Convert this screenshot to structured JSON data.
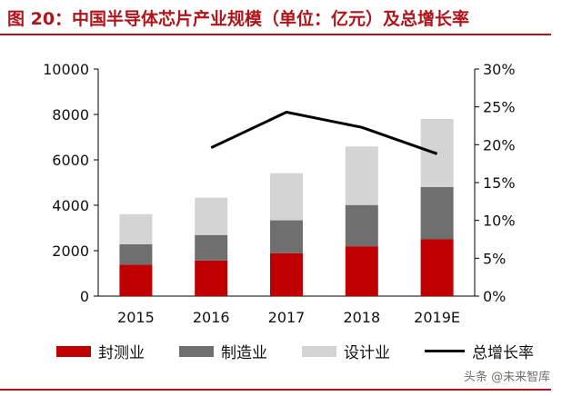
{
  "figure": {
    "title": "图 20：中国半导体芯片产业规模（单位：亿元）及总增长率",
    "watermark": "头条 @未来智库"
  },
  "chart_data": {
    "type": "bar",
    "stacked": true,
    "categories": [
      "2015",
      "2016",
      "2017",
      "2018",
      "2019E"
    ],
    "series": [
      {
        "name": "封测业",
        "color": "#c00000",
        "values": [
          1384,
          1564,
          1890,
          2194,
          2500
        ]
      },
      {
        "name": "制造业",
        "color": "#6f6f6f",
        "values": [
          900,
          1127,
          1448,
          1818,
          2300
        ]
      },
      {
        "name": "设计业",
        "color": "#d4d4d4",
        "values": [
          1325,
          1644,
          2073,
          2577,
          3000
        ]
      }
    ],
    "line_series": {
      "name": "总增长率",
      "color": "#000000",
      "values": [
        null,
        0.196,
        0.243,
        0.223,
        0.188
      ]
    },
    "ylim": [
      0,
      10000
    ],
    "yticks": [
      "0",
      "2000",
      "4000",
      "6000",
      "8000",
      "10000"
    ],
    "y2lim": [
      0,
      0.3
    ],
    "y2ticks": [
      "0%",
      "5%",
      "10%",
      "15%",
      "20%",
      "25%",
      "30%"
    ],
    "grid": false,
    "legend_position": "bottom"
  }
}
